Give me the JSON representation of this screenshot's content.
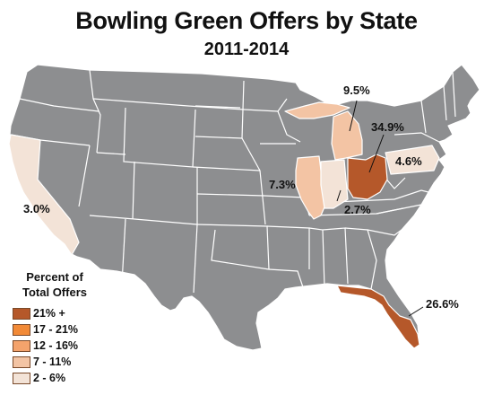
{
  "title": "Bowling Green Offers by State",
  "subtitle": "2011-2014",
  "colors": {
    "default_state": "#8d8e90",
    "bin_21_plus": "#b5582a",
    "bin_17_21": "#f28a37",
    "bin_12_16": "#f4a36c",
    "bin_7_11": "#f3c4a4",
    "bin_2_6": "#f3e3d7"
  },
  "legend": {
    "title_line1": "Percent of",
    "title_line2": "Total Offers",
    "items": [
      {
        "label": "21% +",
        "color": "#b5582a"
      },
      {
        "label": "17 - 21%",
        "color": "#f28a37"
      },
      {
        "label": "12 - 16%",
        "color": "#f4a36c"
      },
      {
        "label": "7 - 11%",
        "color": "#f3c4a4"
      },
      {
        "label": "2 - 6%",
        "color": "#f3e3d7"
      }
    ]
  },
  "highlighted_states": [
    {
      "state": "Ohio",
      "value": "34.9%",
      "bin": "21% +"
    },
    {
      "state": "Florida",
      "value": "26.6%",
      "bin": "21% +"
    },
    {
      "state": "Michigan",
      "value": "9.5%",
      "bin": "7 - 11%"
    },
    {
      "state": "Illinois",
      "value": "7.3%",
      "bin": "7 - 11%"
    },
    {
      "state": "Pennsylvania",
      "value": "4.6%",
      "bin": "2 - 6%"
    },
    {
      "state": "California",
      "value": "3.0%",
      "bin": "2 - 6%"
    },
    {
      "state": "Indiana",
      "value": "2.7%",
      "bin": "2 - 6%"
    }
  ],
  "labels": {
    "ohio": "34.9%",
    "florida": "26.6%",
    "michigan": "9.5%",
    "illinois": "7.3%",
    "pennsylvania": "4.6%",
    "california": "3.0%",
    "indiana": "2.7%"
  }
}
